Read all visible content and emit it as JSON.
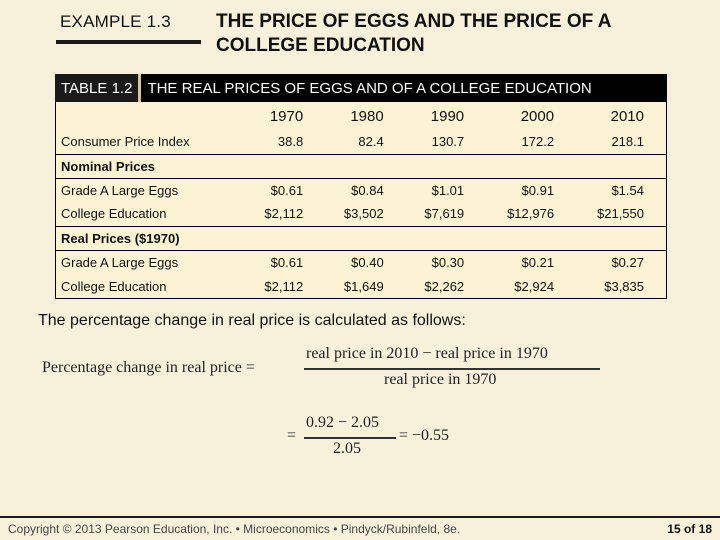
{
  "example_label": "EXAMPLE 1.3",
  "slide_title": "THE PRICE OF EGGS AND THE PRICE OF A COLLEGE EDUCATION",
  "table": {
    "number": "TABLE 1.2",
    "caption": "THE REAL PRICES OF EGGS AND OF A COLLEGE EDUCATION",
    "years": [
      "1970",
      "1980",
      "1990",
      "2000",
      "2010"
    ],
    "cpi": {
      "label": "Consumer Price Index",
      "values": [
        "38.8",
        "82.4",
        "130.7",
        "172.2",
        "218.1"
      ]
    },
    "sections": [
      {
        "title": "Nominal Prices",
        "rows": [
          {
            "label": "Grade A Large Eggs",
            "values": [
              "$0.61",
              "$0.84",
              "$1.01",
              "$0.91",
              "$1.54"
            ]
          },
          {
            "label": "College Education",
            "values": [
              "$2,112",
              "$3,502",
              "$7,619",
              "$12,976",
              "$21,550"
            ]
          }
        ]
      },
      {
        "title": "Real Prices ($1970)",
        "rows": [
          {
            "label": "Grade A Large Eggs",
            "values": [
              "$0.61",
              "$0.40",
              "$0.30",
              "$0.21",
              "$0.27"
            ]
          },
          {
            "label": "College Education",
            "values": [
              "$2,112",
              "$1,649",
              "$2,262",
              "$2,924",
              "$3,835"
            ]
          }
        ]
      }
    ]
  },
  "note": "The percentage change in real price is calculated as follows:",
  "formula": {
    "lhs": "Percentage change in real price =",
    "num1": "real price in 2010 − real price in 1970",
    "den1": "real price in 1970",
    "eq2": "=",
    "num2": "0.92 − 2.05",
    "den2": "2.05",
    "result": "= −0.55"
  },
  "footer": "Copyright © 2013 Pearson Education, Inc. • Microeconomics • Pindyck/Rubinfeld, 8e.",
  "pager": "15 of 18"
}
